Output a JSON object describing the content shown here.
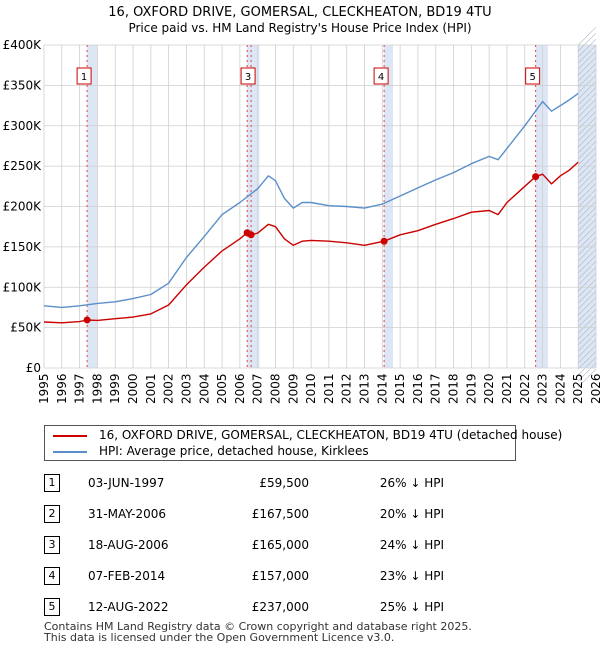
{
  "chart_data": {
    "type": "line",
    "title": "16, OXFORD DRIVE, GOMERSAL, CLECKHEATON, BD19 4TU",
    "subtitle": "Price paid vs. HM Land Registry's House Price Index (HPI)",
    "xlim": [
      1995,
      2026
    ],
    "ylim": [
      0,
      400000
    ],
    "x_ticks": [
      1995,
      1996,
      1997,
      1998,
      1999,
      2000,
      2001,
      2002,
      2003,
      2004,
      2005,
      2006,
      2007,
      2008,
      2009,
      2010,
      2011,
      2012,
      2013,
      2014,
      2015,
      2016,
      2017,
      2018,
      2019,
      2020,
      2021,
      2022,
      2023,
      2024,
      2025,
      2026
    ],
    "y_ticks": [
      0,
      50000,
      100000,
      150000,
      200000,
      250000,
      300000,
      350000,
      400000
    ],
    "y_tick_labels": [
      "£0",
      "£50K",
      "£100K",
      "£150K",
      "£200K",
      "£250K",
      "£300K",
      "£350K",
      "£400K"
    ],
    "colors": {
      "property": "#cc0000",
      "hpi": "#5b8fc9",
      "shade": "#dde6f4",
      "grid": "#cfcfcf",
      "vline": "#dd4444"
    },
    "series": [
      {
        "name": "16, OXFORD DRIVE, GOMERSAL, CLECKHEATON, BD19 4TU (detached house)",
        "x": [
          1995,
          1996,
          1997,
          1997.42,
          1998,
          1999,
          2000,
          2001,
          2002,
          2003,
          2004,
          2005,
          2006,
          2006.41,
          2006.63,
          2007,
          2007.6,
          2008,
          2008.5,
          2009,
          2009.5,
          2010,
          2011,
          2012,
          2013,
          2014.1,
          2015,
          2016,
          2017,
          2018,
          2019,
          2020,
          2020.5,
          2021,
          2022,
          2022.61,
          2023,
          2023.5,
          2024,
          2024.5,
          2025
        ],
        "values": [
          57000,
          56000,
          57500,
          59500,
          59000,
          61000,
          63000,
          67000,
          78000,
          103000,
          125000,
          145000,
          160000,
          167500,
          165000,
          167000,
          178000,
          175000,
          160000,
          152000,
          157000,
          158000,
          157000,
          155000,
          152000,
          157000,
          165000,
          170000,
          178000,
          185000,
          193000,
          195000,
          190000,
          205000,
          225000,
          237000,
          240000,
          228000,
          238000,
          245000,
          255000
        ]
      },
      {
        "name": "HPI: Average price, detached house, Kirklees",
        "x": [
          1995,
          1996,
          1997,
          1998,
          1999,
          2000,
          2001,
          2002,
          2003,
          2004,
          2005,
          2006,
          2007,
          2007.6,
          2008,
          2008.5,
          2009,
          2009.5,
          2010,
          2011,
          2012,
          2013,
          2014,
          2015,
          2016,
          2017,
          2018,
          2019,
          2020,
          2020.5,
          2021,
          2022,
          2022.6,
          2023,
          2023.5,
          2024,
          2024.5,
          2025
        ],
        "values": [
          77000,
          75000,
          77000,
          80000,
          82000,
          86000,
          91000,
          105000,
          137000,
          163000,
          190000,
          205000,
          222000,
          238000,
          232000,
          210000,
          198000,
          205000,
          205000,
          201000,
          200000,
          198000,
          203000,
          213000,
          223000,
          233000,
          242000,
          253000,
          262000,
          258000,
          272000,
          300000,
          318000,
          330000,
          318000,
          325000,
          332000,
          340000
        ]
      }
    ],
    "transactions": [
      {
        "label": "1",
        "x": 1997.42,
        "value": 59500
      },
      {
        "label": "2",
        "x": 2006.41,
        "value": 167500
      },
      {
        "label": "3",
        "x": 2006.63,
        "value": 165000
      },
      {
        "label": "4",
        "x": 2014.1,
        "value": 157000
      },
      {
        "label": "5",
        "x": 2022.61,
        "value": 237000
      }
    ],
    "marker_labels_shown": [
      "1",
      "3",
      "4",
      "5"
    ],
    "shaded_spans": [
      [
        1997.42,
        1998.0
      ],
      [
        2006.41,
        2007.1
      ],
      [
        2014.1,
        2014.6
      ],
      [
        2022.61,
        2023.3
      ],
      [
        2025.0,
        2026.0
      ]
    ]
  },
  "legend": {
    "property_label": "16, OXFORD DRIVE, GOMERSAL, CLECKHEATON, BD19 4TU (detached house)",
    "hpi_label": "HPI: Average price, detached house, Kirklees"
  },
  "table": [
    {
      "num": "1",
      "date": "03-JUN-1997",
      "price": "£59,500",
      "hpi": "26% ↓ HPI"
    },
    {
      "num": "2",
      "date": "31-MAY-2006",
      "price": "£167,500",
      "hpi": "20% ↓ HPI"
    },
    {
      "num": "3",
      "date": "18-AUG-2006",
      "price": "£165,000",
      "hpi": "24% ↓ HPI"
    },
    {
      "num": "4",
      "date": "07-FEB-2014",
      "price": "£157,000",
      "hpi": "23% ↓ HPI"
    },
    {
      "num": "5",
      "date": "12-AUG-2022",
      "price": "£237,000",
      "hpi": "25% ↓ HPI"
    }
  ],
  "footer": {
    "line1": "Contains HM Land Registry data © Crown copyright and database right 2025.",
    "line2": "This data is licensed under the Open Government Licence v3.0."
  }
}
